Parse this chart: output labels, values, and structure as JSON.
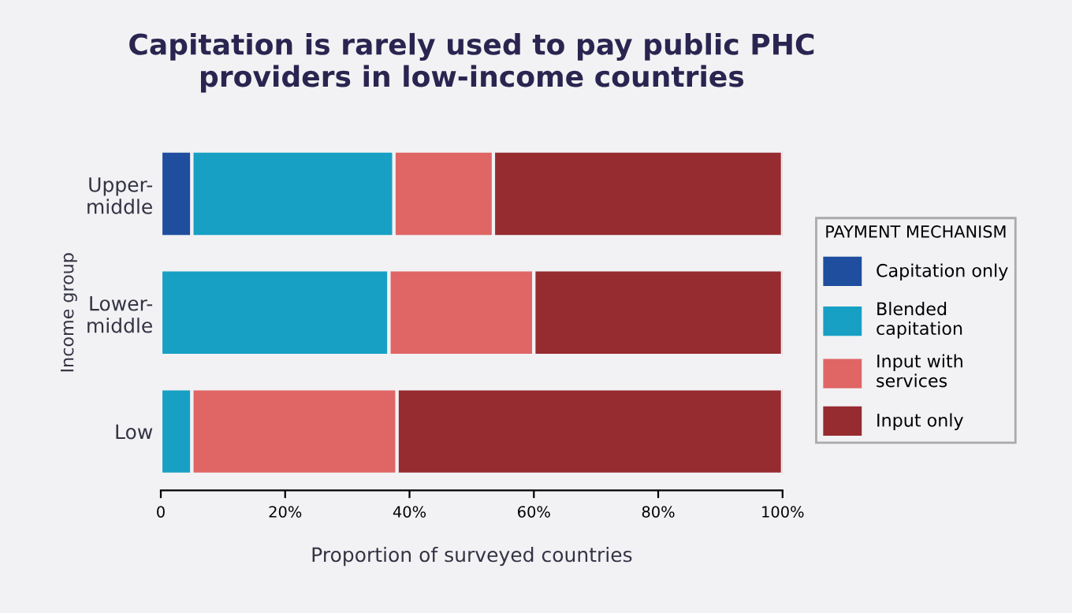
{
  "chart_data": {
    "type": "bar",
    "orientation": "horizontal",
    "stacked": true,
    "title": "Capitation is rarely used to pay public PHC\nproviders in low-income countries",
    "xlabel": "Proportion of surveyed countries",
    "ylabel": "Income group",
    "legend_title": "PAYMENT MECHANISM",
    "categories": [
      "Upper-\nmiddle",
      "Lower-\nmiddle",
      "Low"
    ],
    "series": [
      {
        "name": "Capitation only",
        "color": "#1f4e9e",
        "values": [
          5,
          0,
          0
        ]
      },
      {
        "name": "Blended\ncapitation",
        "color": "#17a0c4",
        "values": [
          32.5,
          36.7,
          5
        ]
      },
      {
        "name": "Input with\nservices",
        "color": "#e06666",
        "values": [
          16,
          23.3,
          33
        ]
      },
      {
        "name": "Input only",
        "color": "#962b30",
        "values": [
          46.5,
          40,
          62
        ]
      }
    ],
    "xlim": [
      0,
      100
    ],
    "xticks": [
      {
        "value": 0,
        "label": "0"
      },
      {
        "value": 20,
        "label": "20%"
      },
      {
        "value": 40,
        "label": "40%"
      },
      {
        "value": 60,
        "label": "60%"
      },
      {
        "value": 80,
        "label": "80%"
      },
      {
        "value": 100,
        "label": "100%"
      }
    ],
    "legend": "right",
    "grid": false
  }
}
